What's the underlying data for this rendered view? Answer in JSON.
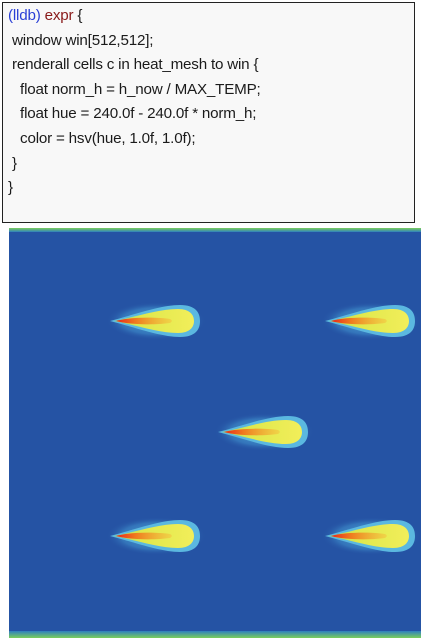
{
  "code": {
    "prompt": "(lldb)",
    "keyword": "expr",
    "first_rest": " {",
    "lines": [
      " window win[512,512];",
      " renderall cells c in heat_mesh to win {",
      "   float norm_h = h_now / MAX_TEMP;",
      "   float hue = 240.0f - 240.0f * norm_h;",
      "   color = hsv(hue, 1.0f, 1.0f);",
      " }",
      "}"
    ]
  },
  "visualization": {
    "background_color": "#2553a4",
    "border_color": "#6bbf4a",
    "plume_colors": {
      "outer": "#5bb8e0",
      "mid": "#e9e94a",
      "inner": "#f08a1e",
      "core": "#e0201e"
    },
    "plume_count": 5
  }
}
